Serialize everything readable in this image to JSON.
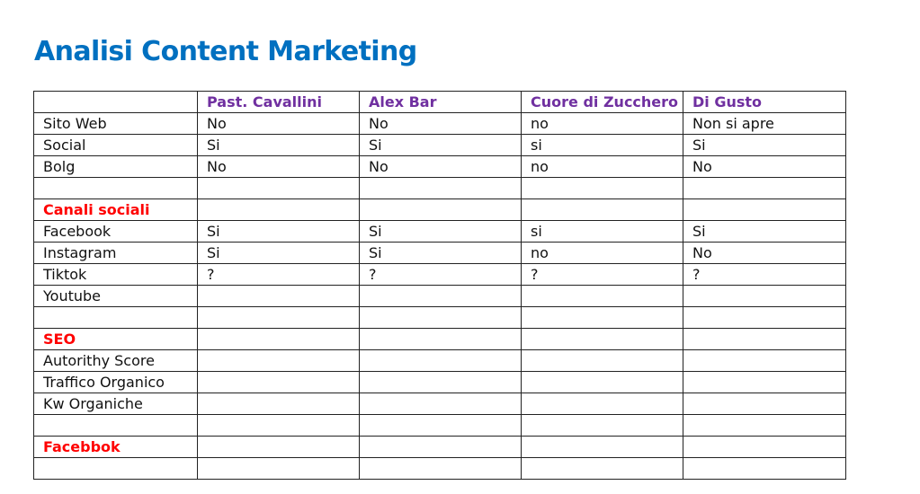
{
  "title": "Analisi Content Marketing",
  "colors": {
    "title": "#0070C0",
    "header": "#7030A0",
    "section": "#FF0000"
  },
  "table": {
    "headers": [
      "",
      "Past. Cavallini",
      "Alex Bar",
      "Cuore di Zucchero",
      "Di Gusto"
    ],
    "rows": [
      {
        "type": "data",
        "cells": [
          "Sito Web",
          "No",
          "No",
          "no",
          "Non si apre"
        ]
      },
      {
        "type": "data",
        "cells": [
          "Social",
          "Si",
          "Si",
          "si",
          "Si"
        ]
      },
      {
        "type": "data",
        "cells": [
          "Bolg",
          "No",
          "No",
          "no",
          "No"
        ]
      },
      {
        "type": "data",
        "cells": [
          "",
          "",
          "",
          "",
          ""
        ]
      },
      {
        "type": "section",
        "cells": [
          "Canali sociali",
          "",
          "",
          "",
          ""
        ]
      },
      {
        "type": "data",
        "cells": [
          "Facebook",
          "Si",
          "Si",
          "si",
          "Si"
        ]
      },
      {
        "type": "data",
        "cells": [
          "Instagram",
          "Si",
          "Si",
          "no",
          "No"
        ]
      },
      {
        "type": "data",
        "cells": [
          "Tiktok",
          "?",
          "?",
          "?",
          "?"
        ]
      },
      {
        "type": "data",
        "cells": [
          "Youtube",
          "",
          "",
          "",
          ""
        ]
      },
      {
        "type": "data",
        "cells": [
          "",
          "",
          "",
          "",
          ""
        ]
      },
      {
        "type": "section",
        "cells": [
          "SEO",
          "",
          "",
          "",
          ""
        ]
      },
      {
        "type": "data",
        "cells": [
          "Autorithy Score",
          "",
          "",
          "",
          ""
        ]
      },
      {
        "type": "data",
        "cells": [
          "Traffico Organico",
          "",
          "",
          "",
          ""
        ]
      },
      {
        "type": "data",
        "cells": [
          "Kw Organiche",
          "",
          "",
          "",
          ""
        ]
      },
      {
        "type": "data",
        "cells": [
          "",
          "",
          "",
          "",
          ""
        ]
      },
      {
        "type": "section",
        "cells": [
          "Facebbok",
          "",
          "",
          "",
          ""
        ]
      },
      {
        "type": "data",
        "cells": [
          "",
          "",
          "",
          "",
          ""
        ]
      }
    ]
  }
}
